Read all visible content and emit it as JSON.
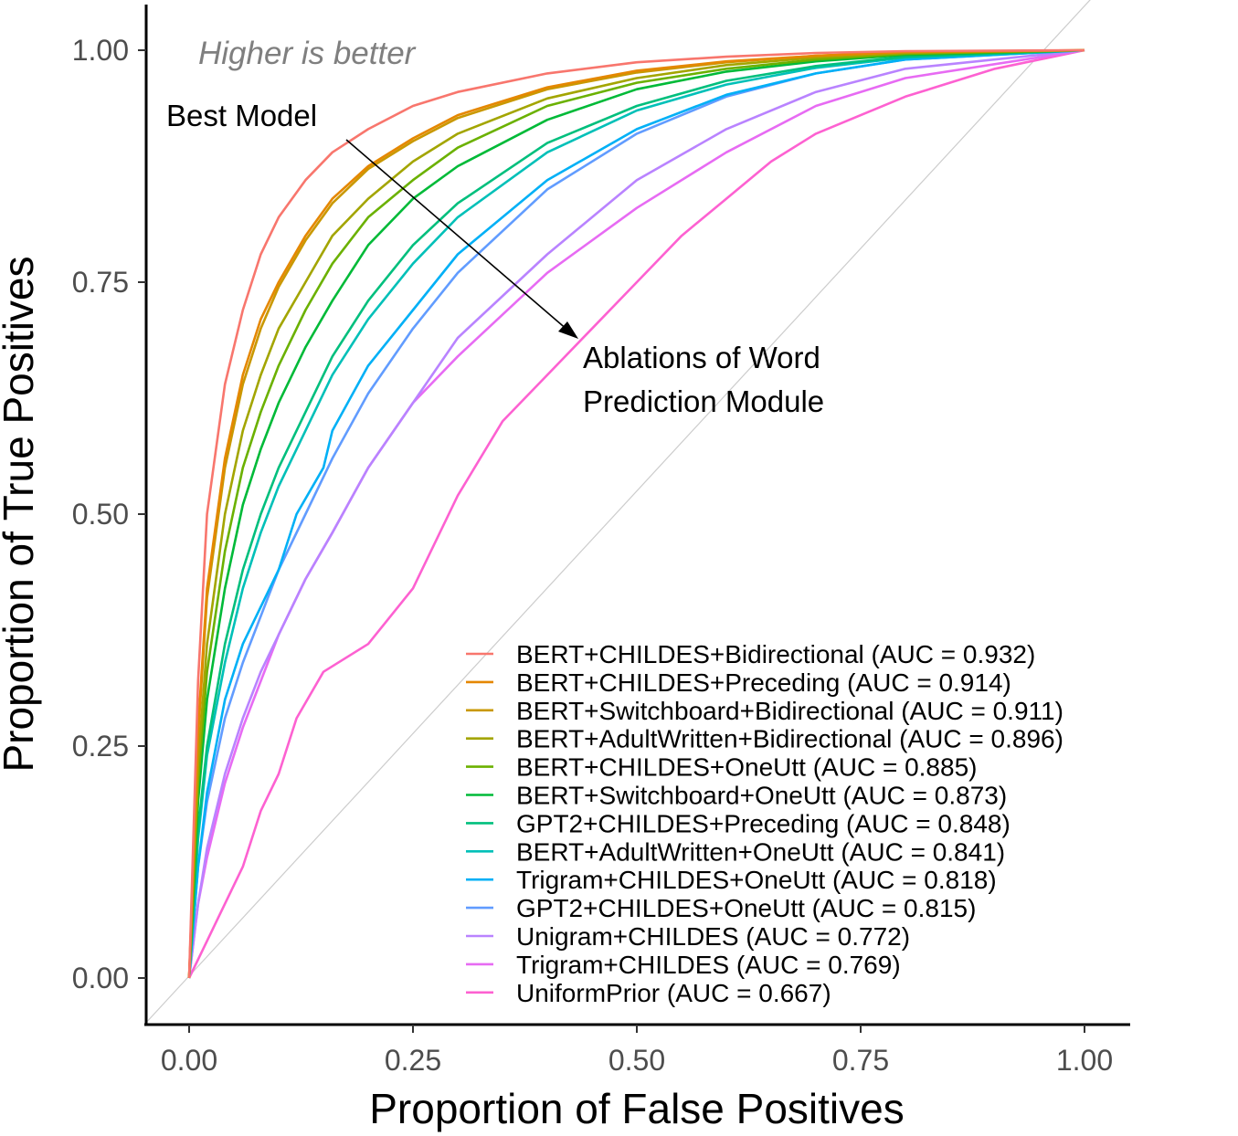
{
  "chart_data": {
    "type": "line",
    "title": "",
    "xlabel": "Proportion of False Positives",
    "ylabel": "Proportion of True Positives",
    "xlim": [
      -0.1,
      1.05
    ],
    "ylim": [
      -0.1,
      1.1
    ],
    "xticks": [
      "0.00",
      "0.25",
      "0.50",
      "0.75",
      "1.00"
    ],
    "yticks": [
      "0.00",
      "0.25",
      "0.50",
      "0.75",
      "1.00"
    ],
    "grid": false,
    "legend_position": "bottom-right",
    "diagonal_reference": true,
    "annotations": {
      "higher_is_better": "Higher is better",
      "best_model": "Best Model",
      "ablations_line1": "Ablations of Word",
      "ablations_line2": "Prediction Module"
    },
    "series": [
      {
        "name": "BERT+CHILDES+Bidirectional (AUC = 0.932)",
        "color": "#F8766D",
        "points": [
          [
            0,
            0
          ],
          [
            0.01,
            0.32
          ],
          [
            0.02,
            0.5
          ],
          [
            0.04,
            0.64
          ],
          [
            0.06,
            0.72
          ],
          [
            0.08,
            0.78
          ],
          [
            0.1,
            0.82
          ],
          [
            0.13,
            0.86
          ],
          [
            0.16,
            0.89
          ],
          [
            0.2,
            0.915
          ],
          [
            0.25,
            0.94
          ],
          [
            0.3,
            0.955
          ],
          [
            0.4,
            0.975
          ],
          [
            0.5,
            0.987
          ],
          [
            0.6,
            0.993
          ],
          [
            0.7,
            0.997
          ],
          [
            0.8,
            0.999
          ],
          [
            1,
            1
          ]
        ]
      },
      {
        "name": "BERT+CHILDES+Preceding (AUC = 0.914)",
        "color": "#E58700",
        "points": [
          [
            0,
            0
          ],
          [
            0.01,
            0.27
          ],
          [
            0.02,
            0.42
          ],
          [
            0.04,
            0.56
          ],
          [
            0.06,
            0.65
          ],
          [
            0.08,
            0.71
          ],
          [
            0.1,
            0.75
          ],
          [
            0.13,
            0.8
          ],
          [
            0.16,
            0.84
          ],
          [
            0.2,
            0.875
          ],
          [
            0.25,
            0.905
          ],
          [
            0.3,
            0.93
          ],
          [
            0.4,
            0.96
          ],
          [
            0.5,
            0.978
          ],
          [
            0.6,
            0.988
          ],
          [
            0.7,
            0.994
          ],
          [
            0.8,
            0.998
          ],
          [
            1,
            1
          ]
        ]
      },
      {
        "name": "BERT+Switchboard+Bidirectional (AUC = 0.911)",
        "color": "#C99800",
        "points": [
          [
            0,
            0
          ],
          [
            0.01,
            0.26
          ],
          [
            0.02,
            0.41
          ],
          [
            0.04,
            0.55
          ],
          [
            0.06,
            0.64
          ],
          [
            0.08,
            0.7
          ],
          [
            0.1,
            0.745
          ],
          [
            0.13,
            0.795
          ],
          [
            0.16,
            0.835
          ],
          [
            0.2,
            0.872
          ],
          [
            0.25,
            0.902
          ],
          [
            0.3,
            0.927
          ],
          [
            0.4,
            0.958
          ],
          [
            0.5,
            0.976
          ],
          [
            0.6,
            0.987
          ],
          [
            0.7,
            0.994
          ],
          [
            0.8,
            0.998
          ],
          [
            1,
            1
          ]
        ]
      },
      {
        "name": "BERT+AdultWritten+Bidirectional (AUC = 0.896)",
        "color": "#A3A500",
        "points": [
          [
            0,
            0
          ],
          [
            0.01,
            0.23
          ],
          [
            0.02,
            0.36
          ],
          [
            0.04,
            0.5
          ],
          [
            0.06,
            0.59
          ],
          [
            0.08,
            0.65
          ],
          [
            0.1,
            0.7
          ],
          [
            0.13,
            0.75
          ],
          [
            0.16,
            0.8
          ],
          [
            0.2,
            0.84
          ],
          [
            0.25,
            0.88
          ],
          [
            0.3,
            0.91
          ],
          [
            0.4,
            0.948
          ],
          [
            0.5,
            0.97
          ],
          [
            0.6,
            0.984
          ],
          [
            0.7,
            0.992
          ],
          [
            0.8,
            0.997
          ],
          [
            1,
            1
          ]
        ]
      },
      {
        "name": "BERT+CHILDES+OneUtt (AUC = 0.885)",
        "color": "#6BB100",
        "points": [
          [
            0,
            0
          ],
          [
            0.01,
            0.21
          ],
          [
            0.02,
            0.33
          ],
          [
            0.04,
            0.46
          ],
          [
            0.06,
            0.55
          ],
          [
            0.08,
            0.61
          ],
          [
            0.1,
            0.66
          ],
          [
            0.13,
            0.72
          ],
          [
            0.16,
            0.77
          ],
          [
            0.2,
            0.82
          ],
          [
            0.25,
            0.86
          ],
          [
            0.3,
            0.895
          ],
          [
            0.4,
            0.94
          ],
          [
            0.5,
            0.965
          ],
          [
            0.6,
            0.98
          ],
          [
            0.7,
            0.99
          ],
          [
            0.8,
            0.996
          ],
          [
            1,
            1
          ]
        ]
      },
      {
        "name": "BERT+Switchboard+OneUtt (AUC = 0.873)",
        "color": "#00BA38",
        "points": [
          [
            0,
            0
          ],
          [
            0.01,
            0.19
          ],
          [
            0.02,
            0.3
          ],
          [
            0.04,
            0.42
          ],
          [
            0.06,
            0.51
          ],
          [
            0.08,
            0.57
          ],
          [
            0.1,
            0.62
          ],
          [
            0.13,
            0.68
          ],
          [
            0.16,
            0.73
          ],
          [
            0.2,
            0.79
          ],
          [
            0.25,
            0.84
          ],
          [
            0.3,
            0.875
          ],
          [
            0.4,
            0.925
          ],
          [
            0.5,
            0.958
          ],
          [
            0.6,
            0.977
          ],
          [
            0.7,
            0.988
          ],
          [
            0.8,
            0.995
          ],
          [
            1,
            1
          ]
        ]
      },
      {
        "name": "GPT2+CHILDES+Preceding (AUC = 0.848)",
        "color": "#00BF7D",
        "points": [
          [
            0,
            0
          ],
          [
            0.01,
            0.16
          ],
          [
            0.02,
            0.25
          ],
          [
            0.04,
            0.36
          ],
          [
            0.06,
            0.44
          ],
          [
            0.08,
            0.5
          ],
          [
            0.1,
            0.55
          ],
          [
            0.13,
            0.61
          ],
          [
            0.16,
            0.67
          ],
          [
            0.2,
            0.73
          ],
          [
            0.25,
            0.79
          ],
          [
            0.3,
            0.835
          ],
          [
            0.4,
            0.9
          ],
          [
            0.5,
            0.94
          ],
          [
            0.6,
            0.967
          ],
          [
            0.7,
            0.983
          ],
          [
            0.8,
            0.993
          ],
          [
            1,
            1
          ]
        ]
      },
      {
        "name": "BERT+AdultWritten+OneUtt (AUC = 0.841)",
        "color": "#00C0B8",
        "points": [
          [
            0,
            0
          ],
          [
            0.01,
            0.15
          ],
          [
            0.02,
            0.24
          ],
          [
            0.04,
            0.34
          ],
          [
            0.06,
            0.42
          ],
          [
            0.08,
            0.48
          ],
          [
            0.1,
            0.53
          ],
          [
            0.13,
            0.59
          ],
          [
            0.16,
            0.65
          ],
          [
            0.2,
            0.71
          ],
          [
            0.25,
            0.77
          ],
          [
            0.3,
            0.82
          ],
          [
            0.4,
            0.89
          ],
          [
            0.5,
            0.935
          ],
          [
            0.6,
            0.963
          ],
          [
            0.7,
            0.981
          ],
          [
            0.8,
            0.992
          ],
          [
            1,
            1
          ]
        ]
      },
      {
        "name": "Trigram+CHILDES+OneUtt (AUC = 0.818)",
        "color": "#00B0F6",
        "points": [
          [
            0,
            0
          ],
          [
            0.01,
            0.12
          ],
          [
            0.02,
            0.2
          ],
          [
            0.04,
            0.3
          ],
          [
            0.06,
            0.36
          ],
          [
            0.08,
            0.4
          ],
          [
            0.1,
            0.44
          ],
          [
            0.12,
            0.5
          ],
          [
            0.15,
            0.55
          ],
          [
            0.16,
            0.59
          ],
          [
            0.2,
            0.66
          ],
          [
            0.25,
            0.72
          ],
          [
            0.3,
            0.78
          ],
          [
            0.4,
            0.86
          ],
          [
            0.5,
            0.915
          ],
          [
            0.6,
            0.952
          ],
          [
            0.7,
            0.975
          ],
          [
            0.8,
            0.99
          ],
          [
            1,
            1
          ]
        ]
      },
      {
        "name": "GPT2+CHILDES+OneUtt (AUC = 0.815)",
        "color": "#619CFF",
        "points": [
          [
            0,
            0
          ],
          [
            0.01,
            0.12
          ],
          [
            0.02,
            0.19
          ],
          [
            0.04,
            0.28
          ],
          [
            0.06,
            0.34
          ],
          [
            0.08,
            0.39
          ],
          [
            0.1,
            0.44
          ],
          [
            0.13,
            0.5
          ],
          [
            0.16,
            0.56
          ],
          [
            0.2,
            0.63
          ],
          [
            0.25,
            0.7
          ],
          [
            0.3,
            0.76
          ],
          [
            0.4,
            0.85
          ],
          [
            0.5,
            0.91
          ],
          [
            0.6,
            0.95
          ],
          [
            0.7,
            0.975
          ],
          [
            0.8,
            0.99
          ],
          [
            1,
            1
          ]
        ]
      },
      {
        "name": "Unigram+CHILDES (AUC = 0.772)",
        "color": "#B983FF",
        "points": [
          [
            0,
            0
          ],
          [
            0.01,
            0.08
          ],
          [
            0.02,
            0.14
          ],
          [
            0.04,
            0.22
          ],
          [
            0.06,
            0.28
          ],
          [
            0.08,
            0.33
          ],
          [
            0.1,
            0.37
          ],
          [
            0.13,
            0.43
          ],
          [
            0.16,
            0.48
          ],
          [
            0.2,
            0.55
          ],
          [
            0.25,
            0.62
          ],
          [
            0.3,
            0.69
          ],
          [
            0.4,
            0.78
          ],
          [
            0.5,
            0.86
          ],
          [
            0.6,
            0.915
          ],
          [
            0.7,
            0.955
          ],
          [
            0.8,
            0.98
          ],
          [
            1,
            1
          ]
        ]
      },
      {
        "name": "Trigram+CHILDES (AUC = 0.769)",
        "color": "#E76BF3",
        "points": [
          [
            0,
            0
          ],
          [
            0.01,
            0.08
          ],
          [
            0.02,
            0.13
          ],
          [
            0.04,
            0.21
          ],
          [
            0.06,
            0.27
          ],
          [
            0.08,
            0.32
          ],
          [
            0.1,
            0.37
          ],
          [
            0.13,
            0.43
          ],
          [
            0.16,
            0.48
          ],
          [
            0.2,
            0.55
          ],
          [
            0.25,
            0.62
          ],
          [
            0.3,
            0.67
          ],
          [
            0.4,
            0.76
          ],
          [
            0.5,
            0.83
          ],
          [
            0.6,
            0.89
          ],
          [
            0.7,
            0.94
          ],
          [
            0.8,
            0.97
          ],
          [
            1,
            1
          ]
        ]
      },
      {
        "name": "UniformPrior (AUC = 0.667)",
        "color": "#FD61D1",
        "points": [
          [
            0,
            0
          ],
          [
            0.02,
            0.04
          ],
          [
            0.04,
            0.08
          ],
          [
            0.06,
            0.12
          ],
          [
            0.08,
            0.18
          ],
          [
            0.1,
            0.22
          ],
          [
            0.12,
            0.28
          ],
          [
            0.15,
            0.33
          ],
          [
            0.2,
            0.36
          ],
          [
            0.25,
            0.42
          ],
          [
            0.3,
            0.52
          ],
          [
            0.35,
            0.6
          ],
          [
            0.4,
            0.65
          ],
          [
            0.45,
            0.7
          ],
          [
            0.5,
            0.75
          ],
          [
            0.55,
            0.8
          ],
          [
            0.6,
            0.84
          ],
          [
            0.65,
            0.88
          ],
          [
            0.7,
            0.91
          ],
          [
            0.8,
            0.95
          ],
          [
            0.9,
            0.98
          ],
          [
            1,
            1
          ]
        ]
      }
    ]
  }
}
